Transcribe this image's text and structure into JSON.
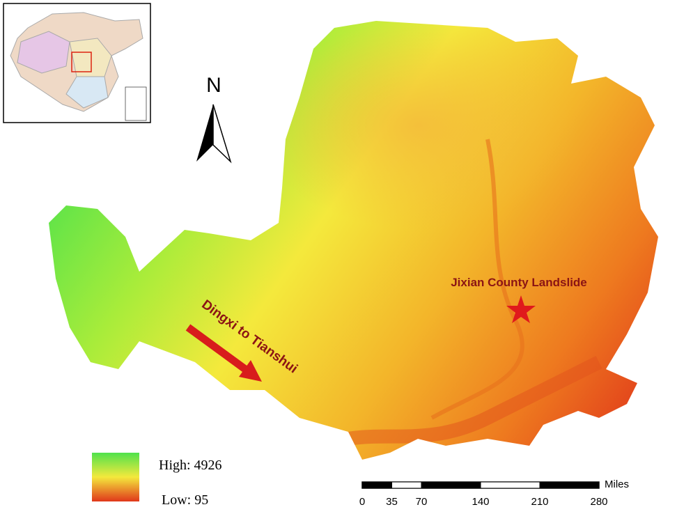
{
  "north_arrow": {
    "label": "N"
  },
  "annotations": {
    "landslide": "Jixian County Landslide",
    "route": "Dingxi to Tianshui"
  },
  "legend": {
    "high": "High:  4926",
    "low": "Low: 95"
  },
  "scale_bar": {
    "unit": "Miles",
    "ticks": [
      0,
      35,
      70,
      140,
      210,
      280
    ]
  }
}
